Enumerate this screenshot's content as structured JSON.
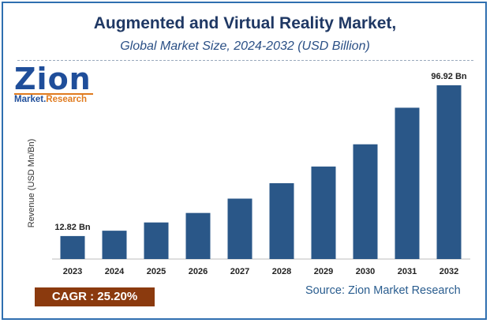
{
  "header": {
    "title": "Augmented and Virtual Reality Market,",
    "subtitle": "Global Market Size, 2024-2032 (USD Billion)"
  },
  "logo": {
    "word": "Zion",
    "sub_left": "Market.",
    "sub_right": "Research"
  },
  "chart_data": {
    "type": "bar",
    "categories": [
      "2023",
      "2024",
      "2025",
      "2026",
      "2027",
      "2028",
      "2029",
      "2030",
      "2031",
      "2032"
    ],
    "values": [
      12.82,
      15.8,
      20.4,
      25.7,
      33.7,
      42.3,
      51.6,
      64.0,
      84.4,
      96.92
    ],
    "data_labels": {
      "2023": "12.82 Bn",
      "2032": "96.92 Bn"
    },
    "ylabel": "Revenue (USD Mn/Bn)",
    "xlabel": "",
    "ylim": [
      0,
      100
    ],
    "grid": false,
    "bar_color": "#2a5788"
  },
  "footer": {
    "cagr": "CAGR :  25.20%",
    "source": "Source: Zion Market Research"
  }
}
